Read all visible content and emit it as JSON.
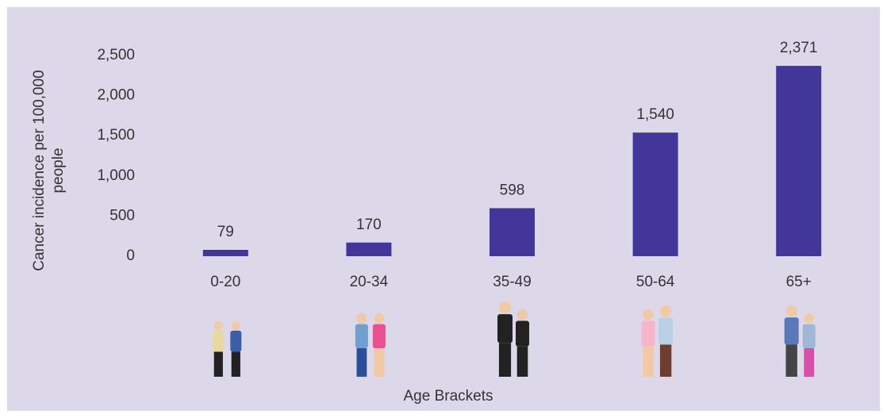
{
  "chart_data": {
    "type": "bar",
    "y_label": [
      "Cancer incidence per 100,000",
      "people"
    ],
    "x_label": "Age Brackets",
    "categories": [
      "0-20",
      "20-34",
      "35-49",
      "50-64",
      "65+"
    ],
    "values": [
      79,
      170,
      598,
      1540,
      2371
    ],
    "value_labels": [
      "79",
      "170",
      "598",
      "1,540",
      "2,371"
    ],
    "color": "#43369a",
    "ylim": [
      0,
      2500
    ],
    "yticks": [
      0,
      500,
      {
        "value": 1000,
        "label": "1,000"
      },
      {
        "value": 1500,
        "label": "1,500"
      },
      {
        "value": 2000,
        "label": "2,000"
      },
      {
        "value": 2500,
        "label": "2,500"
      }
    ],
    "grid": false
  }
}
